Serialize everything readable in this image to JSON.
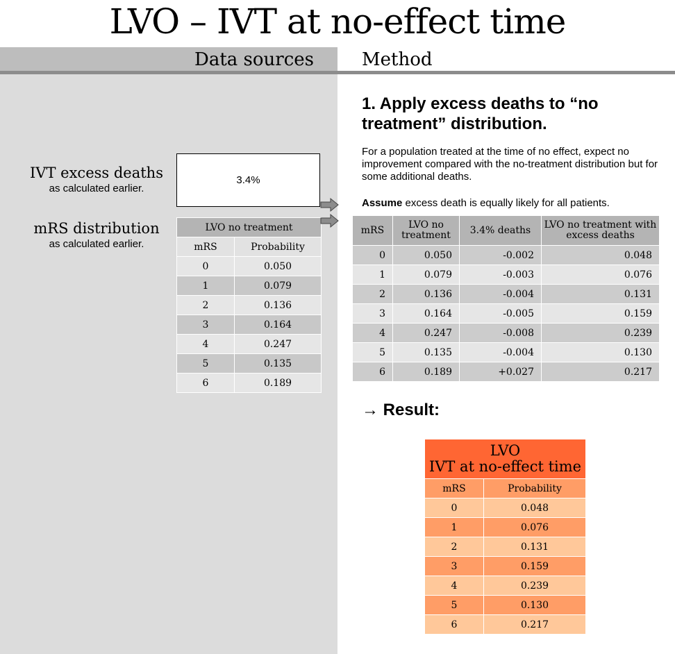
{
  "title": "LVO – IVT at no-effect time",
  "headers": {
    "left": "Data sources",
    "right": "Method"
  },
  "sources": {
    "excess": {
      "label": "IVT excess deaths",
      "sub": "as calculated earlier.",
      "value": "3.4%"
    },
    "mrs": {
      "label": "mRS distribution",
      "sub": "as calculated earlier."
    }
  },
  "source_table": {
    "title": "LVO no treatment",
    "columns": [
      "mRS",
      "Probability"
    ],
    "rows": [
      [
        "0",
        "0.050"
      ],
      [
        "1",
        "0.079"
      ],
      [
        "2",
        "0.136"
      ],
      [
        "3",
        "0.164"
      ],
      [
        "4",
        "0.247"
      ],
      [
        "5",
        "0.135"
      ],
      [
        "6",
        "0.189"
      ]
    ]
  },
  "method": {
    "step_title": "1. Apply excess deaths to “no treatment” distribution.",
    "description": "For a population treated at the time of no effect, expect no improvement compared with the no-treatment distribution but for some additional deaths.",
    "assume_bold": "Assume",
    "assume_rest": " excess death is equally likely for all patients.",
    "result_label": "→ Result:"
  },
  "method_table": {
    "columns": [
      "mRS",
      "LVO no treatment",
      "3.4% deaths",
      "LVO no treatment with excess deaths"
    ],
    "rows": [
      [
        "0",
        "0.050",
        "-0.002",
        "0.048"
      ],
      [
        "1",
        "0.079",
        "-0.003",
        "0.076"
      ],
      [
        "2",
        "0.136",
        "-0.004",
        "0.131"
      ],
      [
        "3",
        "0.164",
        "-0.005",
        "0.159"
      ],
      [
        "4",
        "0.247",
        "-0.008",
        "0.239"
      ],
      [
        "5",
        "0.135",
        "-0.004",
        "0.130"
      ],
      [
        "6",
        "0.189",
        "+0.027",
        "0.217"
      ]
    ]
  },
  "result_table": {
    "title_line1": "LVO",
    "title_line2": "IVT at no-effect time",
    "columns": [
      "mRS",
      "Probability"
    ],
    "rows": [
      [
        "0",
        "0.048"
      ],
      [
        "1",
        "0.076"
      ],
      [
        "2",
        "0.131"
      ],
      [
        "3",
        "0.159"
      ],
      [
        "4",
        "0.239"
      ],
      [
        "5",
        "0.130"
      ],
      [
        "6",
        "0.217"
      ]
    ]
  },
  "colors": {
    "panel": "#dcdcdc",
    "header": "#bdbdbd",
    "rule": "#8c8c8c",
    "result_title": "#ff6633",
    "result_dark": "#ff9d66",
    "result_light": "#ffc89a"
  }
}
